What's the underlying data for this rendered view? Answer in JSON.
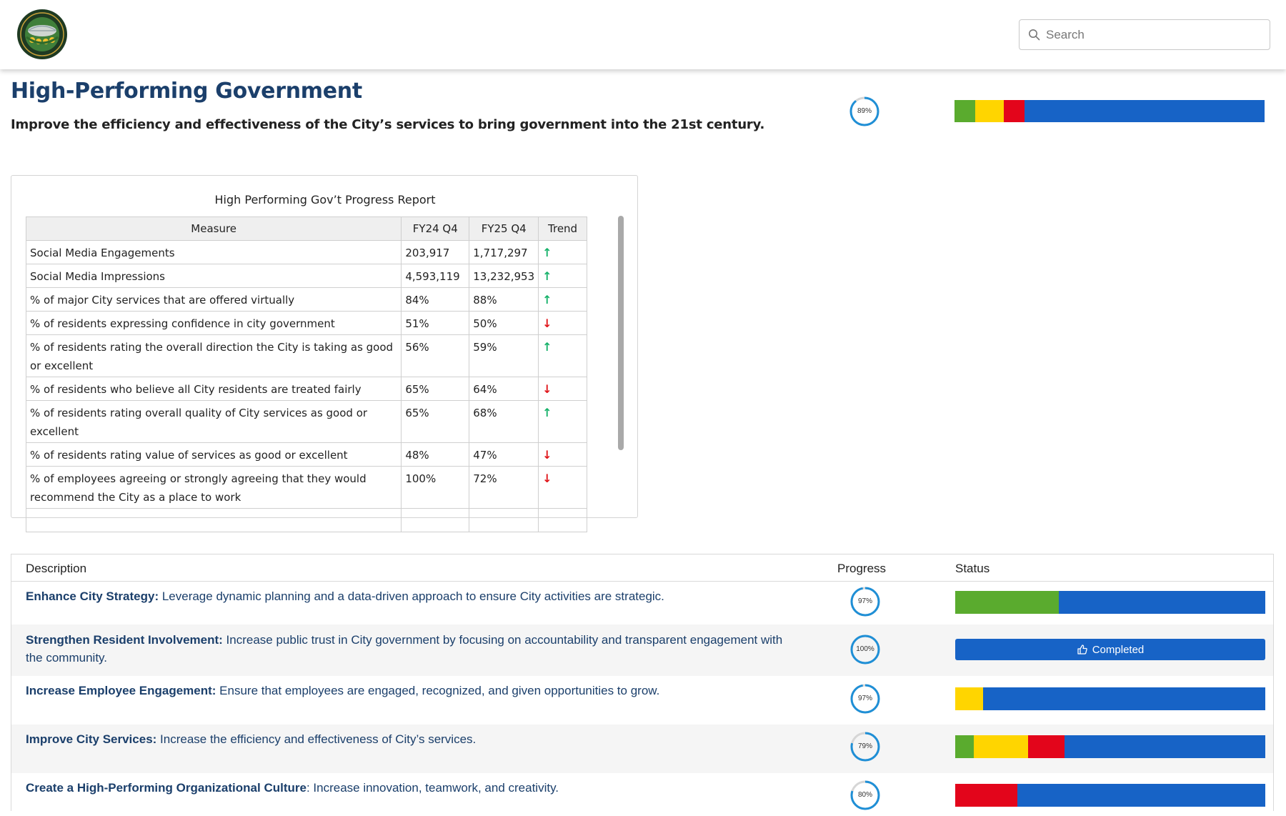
{
  "header": {
    "logo_name": "city-of-corona-seal",
    "search": {
      "placeholder": "Search",
      "value": ""
    }
  },
  "page": {
    "title": "High-Performing Government",
    "subtitle": "Improve the efficiency and effectiveness of the City’s services to bring government into the 21st century.",
    "progress": {
      "percent": 89,
      "label": "89%"
    },
    "status": [
      {
        "status": "green",
        "fraction": 0.067
      },
      {
        "status": "yellow",
        "fraction": 0.093
      },
      {
        "status": "red",
        "fraction": 0.067
      },
      {
        "status": "blue",
        "fraction": 0.773
      }
    ]
  },
  "colors": {
    "title": "#1b3f6b",
    "green": "#5aab2e",
    "yellow": "#ffd500",
    "red": "#e3051b",
    "blue": "#1763c6",
    "ring": "#1f8fd6",
    "ring_track": "#d6d6d6",
    "trend_up": "#18b26b",
    "trend_down": "#e0161b"
  },
  "report": {
    "title": "High Performing Gov’t Progress Report",
    "columns": [
      "Measure",
      "FY24 Q4",
      "FY25 Q4",
      "Trend"
    ],
    "rows": [
      {
        "measure": "Social Media Engagements",
        "fy24": "203,917",
        "fy25": "1,717,297",
        "trend": "up"
      },
      {
        "measure": "Social Media Impressions",
        "fy24": "4,593,119",
        "fy25": "13,232,953",
        "trend": "up"
      },
      {
        "measure": "% of major City services that are offered virtually",
        "fy24": "84%",
        "fy25": "88%",
        "trend": "up"
      },
      {
        "measure": "% of residents expressing confidence in city government",
        "fy24": "51%",
        "fy25": "50%",
        "trend": "down"
      },
      {
        "measure": "% of residents rating the overall direction the City is taking as good or excellent",
        "fy24": "56%",
        "fy25": "59%",
        "trend": "up"
      },
      {
        "measure": "% of residents who believe all City residents are treated fairly",
        "fy24": "65%",
        "fy25": "64%",
        "trend": "down"
      },
      {
        "measure": "% of residents rating overall quality of City services as good or excellent",
        "fy24": "65%",
        "fy25": "68%",
        "trend": "up"
      },
      {
        "measure": "% of residents rating value of services as good or excellent",
        "fy24": "48%",
        "fy25": "47%",
        "trend": "down"
      },
      {
        "measure": "% of employees agreeing or strongly agreeing that they would recommend the City as a place to work",
        "fy24": "100%",
        "fy25": "72%",
        "trend": "down"
      }
    ]
  },
  "objectives": {
    "columns": {
      "description": "Description",
      "progress": "Progress",
      "status": "Status"
    },
    "rows": [
      {
        "title": "Enhance City Strategy:",
        "text": " Leverage dynamic planning and a data-driven approach to ensure City activities are strategic.",
        "progress": 97,
        "progress_label": "97%",
        "status": [
          {
            "status": "green",
            "fraction": 0.333
          },
          {
            "status": "blue",
            "fraction": 0.667
          }
        ]
      },
      {
        "title": "Strengthen Resident Involvement:",
        "text": " Increase public trust in City government by focusing on accountability and transparent engagement with the community.",
        "progress": 100,
        "progress_label": "100%",
        "completed_label": "Completed",
        "status": []
      },
      {
        "title": "Increase Employee Engagement:",
        "text": " Ensure that employees are engaged, recognized, and given opportunities to grow.",
        "progress": 97,
        "progress_label": "97%",
        "status": [
          {
            "status": "yellow",
            "fraction": 0.09
          },
          {
            "status": "blue",
            "fraction": 0.91
          }
        ]
      },
      {
        "title": "Improve City Services:",
        "text": " Increase the efficiency and effectiveness of City’s services.",
        "progress": 79,
        "progress_label": "79%",
        "status": [
          {
            "status": "green",
            "fraction": 0.059
          },
          {
            "status": "yellow",
            "fraction": 0.176
          },
          {
            "status": "red",
            "fraction": 0.118
          },
          {
            "status": "blue",
            "fraction": 0.647
          }
        ]
      },
      {
        "title": "Create a High-Performing Organizational Culture",
        "text": ": Increase innovation, teamwork, and creativity.",
        "progress": 80,
        "progress_label": "80%",
        "status": [
          {
            "status": "red",
            "fraction": 0.2
          },
          {
            "status": "blue",
            "fraction": 0.8
          }
        ]
      }
    ]
  }
}
